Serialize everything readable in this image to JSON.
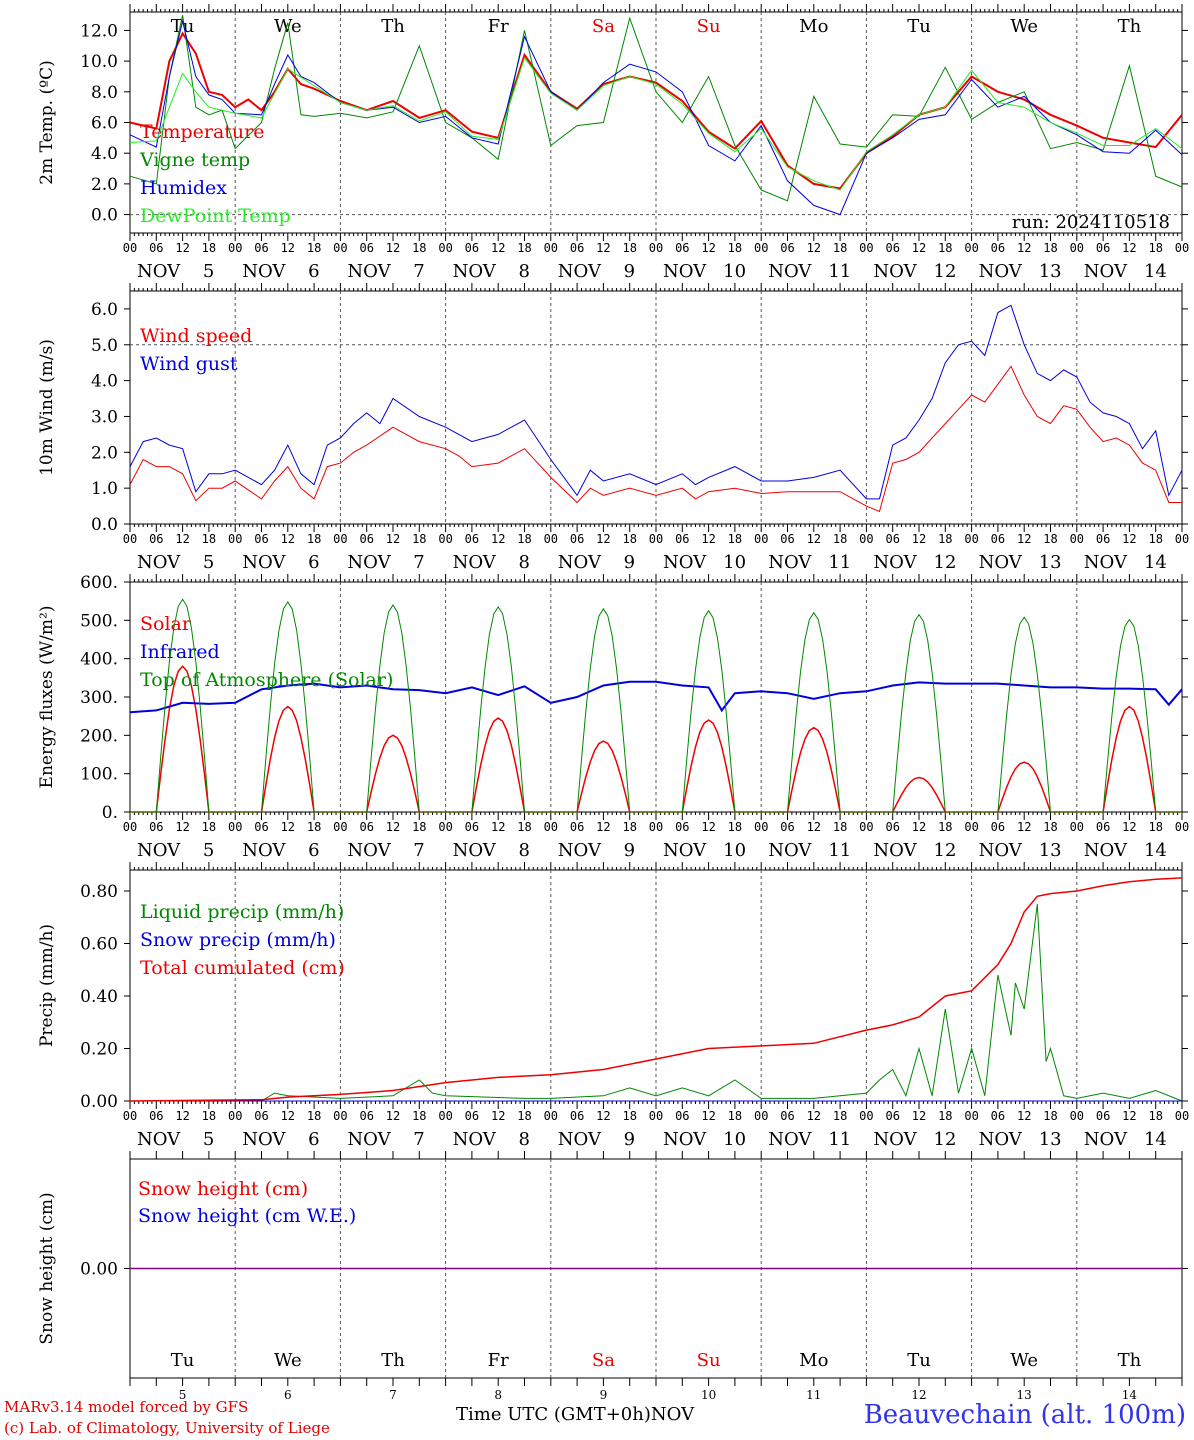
{
  "days": [
    "5",
    "6",
    "7",
    "8",
    "9",
    "10",
    "11",
    "12",
    "13",
    "14"
  ],
  "month": "NOV",
  "weekdays": [
    "Tu",
    "We",
    "Th",
    "Fr",
    "Sa",
    "Su",
    "Mo",
    "Tu",
    "We",
    "Th"
  ],
  "weekend_flags": [
    false,
    false,
    false,
    false,
    true,
    true,
    false,
    false,
    false,
    false
  ],
  "hour_ticks": [
    "00",
    "06",
    "12",
    "18"
  ],
  "last_tick": "00",
  "run_label": "run: 2024110518",
  "footer": {
    "model": "MARv3.14 model forced by GFS",
    "copyright": "(c) Lab. of Climatology, University of Liege",
    "time_axis": "Time UTC (GMT+0h)",
    "month": "NOV",
    "station": "Beauvechain (alt. 100m)"
  },
  "colors": {
    "red": "#ee0000",
    "green": "#008800",
    "blue": "#0000dd",
    "lightgreen": "#22ee22",
    "purple": "#800080"
  },
  "chart_data": [
    {
      "type": "line",
      "ylabel": "2m Temp. (ºC)",
      "ylim": [
        -1.2,
        13.2
      ],
      "yticks": [
        "0.0",
        "2.0",
        "4.0",
        "6.0",
        "8.0",
        "10.0",
        "12.0"
      ],
      "ytick_values": [
        0,
        2,
        4,
        6,
        8,
        10,
        12
      ],
      "dashed_y": [
        0
      ],
      "x_unit": "hours since NOV 5 00 UTC",
      "series": [
        {
          "name": "Temperature",
          "color": "#ee0000",
          "width": 2,
          "x": [
            0,
            6,
            9,
            12,
            15,
            18,
            21,
            24,
            27,
            30,
            33,
            36,
            39,
            42,
            48,
            54,
            60,
            66,
            72,
            78,
            84,
            90,
            96,
            102,
            108,
            114,
            120,
            126,
            132,
            138,
            144,
            150,
            156,
            162,
            168,
            174,
            180,
            186,
            192,
            198,
            204,
            210,
            216,
            222,
            228,
            234,
            240
          ],
          "y": [
            6.0,
            5.6,
            10,
            11.8,
            10.5,
            8,
            7.8,
            7,
            7.5,
            6.8,
            8,
            9.5,
            8.5,
            8.2,
            7.4,
            6.8,
            7.4,
            6.3,
            6.8,
            5.4,
            5,
            10.4,
            8,
            6.9,
            8.5,
            9,
            8.6,
            7.4,
            5.4,
            4.3,
            6.1,
            3.2,
            2.0,
            1.7,
            4,
            5.1,
            6.5,
            7,
            9,
            8,
            7.5,
            6.5,
            5.8,
            5,
            4.7,
            4.4,
            6.5
          ]
        },
        {
          "name": "Vigne temp",
          "color": "#008800",
          "width": 1,
          "x": [
            0,
            6,
            9,
            12,
            15,
            18,
            21,
            24,
            30,
            33,
            36,
            39,
            42,
            48,
            54,
            60,
            66,
            72,
            78,
            84,
            90,
            96,
            102,
            108,
            114,
            120,
            126,
            132,
            138,
            144,
            150,
            156,
            162,
            168,
            174,
            180,
            186,
            192,
            198,
            204,
            210,
            216,
            222,
            228,
            234,
            240
          ],
          "y": [
            2.5,
            2.0,
            9,
            13.0,
            7,
            6.5,
            6.8,
            4.3,
            6,
            9.5,
            12.5,
            6.5,
            6.4,
            6.6,
            6.3,
            6.7,
            11,
            6,
            5,
            3.6,
            12,
            4.5,
            5.8,
            6,
            12.8,
            8,
            6,
            9,
            4.5,
            1.6,
            0.9,
            7.7,
            4.6,
            4.4,
            6.5,
            6.4,
            9.6,
            6.2,
            7.3,
            8,
            4.3,
            4.7,
            4.2,
            9.7,
            2.5,
            1.8
          ]
        },
        {
          "name": "Humidex",
          "color": "#0000dd",
          "width": 1,
          "x": [
            0,
            6,
            9,
            12,
            15,
            18,
            21,
            24,
            30,
            33,
            36,
            39,
            42,
            48,
            54,
            60,
            66,
            72,
            78,
            84,
            90,
            96,
            102,
            108,
            114,
            120,
            126,
            132,
            138,
            144,
            150,
            156,
            162,
            168,
            174,
            180,
            186,
            192,
            198,
            204,
            210,
            216,
            222,
            228,
            234,
            240
          ],
          "y": [
            5.2,
            4.4,
            9,
            12.6,
            9,
            7.8,
            7.5,
            6.6,
            6.5,
            8.5,
            10.4,
            9,
            8.6,
            7.3,
            6.8,
            7,
            6,
            6.4,
            5,
            4.6,
            11.6,
            8,
            6.8,
            8.6,
            9.8,
            9.3,
            8,
            4.5,
            3.5,
            5.8,
            2.2,
            0.6,
            0.0,
            4,
            5,
            6.2,
            6.5,
            8.8,
            7,
            7.7,
            6,
            5.2,
            4.1,
            4.0,
            5.5,
            3.9
          ]
        },
        {
          "name": "DewPoint Temp",
          "color": "#22ee22",
          "width": 1,
          "x": [
            0,
            6,
            9,
            12,
            15,
            18,
            21,
            24,
            30,
            36,
            42,
            48,
            54,
            60,
            66,
            72,
            78,
            84,
            90,
            96,
            102,
            108,
            114,
            120,
            126,
            132,
            138,
            144,
            150,
            156,
            162,
            168,
            174,
            180,
            186,
            192,
            198,
            204,
            210,
            216,
            222,
            228,
            234,
            240
          ],
          "y": [
            4.7,
            4.8,
            7,
            9.2,
            8,
            7,
            6.8,
            6.6,
            6.3,
            9.5,
            8.4,
            7.3,
            6.8,
            7.1,
            6.1,
            6.7,
            5.1,
            4.9,
            10.2,
            7.9,
            6.8,
            8.4,
            9,
            8.5,
            7.2,
            5.3,
            4.1,
            5.6,
            3.1,
            2.2,
            1.6,
            4.1,
            5.2,
            6.5,
            7,
            9.4,
            7.3,
            7.0,
            6,
            5.3,
            4.5,
            4.5,
            5.6,
            4.3
          ]
        }
      ]
    },
    {
      "type": "line",
      "ylabel": "10m Wind (m/s)",
      "ylim": [
        0,
        6.5
      ],
      "yticks": [
        "0.0",
        "1.0",
        "2.0",
        "3.0",
        "4.0",
        "5.0",
        "6.0"
      ],
      "ytick_values": [
        0,
        1,
        2,
        3,
        4,
        5,
        6
      ],
      "dashed_y": [
        5
      ],
      "series": [
        {
          "name": "Wind speed",
          "color": "#ee0000",
          "width": 1,
          "x": [
            0,
            3,
            6,
            9,
            12,
            15,
            18,
            21,
            24,
            30,
            33,
            36,
            39,
            42,
            45,
            48,
            51,
            54,
            60,
            66,
            72,
            75,
            78,
            84,
            90,
            96,
            102,
            105,
            108,
            114,
            120,
            126,
            129,
            132,
            138,
            144,
            150,
            156,
            162,
            168,
            171,
            174,
            177,
            180,
            183,
            186,
            189,
            192,
            195,
            198,
            201,
            204,
            207,
            210,
            213,
            216,
            219,
            222,
            225,
            228,
            231,
            234,
            237,
            240
          ],
          "y": [
            1.1,
            1.8,
            1.6,
            1.6,
            1.4,
            0.65,
            1.0,
            1.0,
            1.2,
            0.7,
            1.2,
            1.6,
            1.0,
            0.7,
            1.6,
            1.7,
            2.0,
            2.2,
            2.7,
            2.3,
            2.1,
            1.9,
            1.6,
            1.7,
            2.1,
            1.3,
            0.6,
            1.0,
            0.8,
            1.0,
            0.8,
            1.0,
            0.7,
            0.9,
            1.0,
            0.85,
            0.9,
            0.9,
            0.9,
            0.5,
            0.35,
            1.7,
            1.8,
            2.0,
            2.4,
            2.8,
            3.2,
            3.6,
            3.4,
            3.9,
            4.4,
            3.6,
            3.0,
            2.8,
            3.3,
            3.2,
            2.7,
            2.3,
            2.4,
            2.2,
            1.7,
            1.5,
            0.6,
            0.6
          ]
        },
        {
          "name": "Wind gust",
          "color": "#0000dd",
          "width": 1,
          "x": [
            0,
            3,
            6,
            9,
            12,
            15,
            18,
            21,
            24,
            30,
            33,
            36,
            39,
            42,
            45,
            48,
            51,
            54,
            57,
            60,
            66,
            72,
            75,
            78,
            84,
            90,
            96,
            102,
            105,
            108,
            114,
            120,
            126,
            129,
            132,
            138,
            144,
            150,
            156,
            162,
            168,
            171,
            174,
            177,
            180,
            183,
            186,
            189,
            192,
            195,
            198,
            201,
            204,
            207,
            210,
            213,
            216,
            219,
            222,
            225,
            228,
            231,
            234,
            237,
            240
          ],
          "y": [
            1.6,
            2.3,
            2.4,
            2.2,
            2.1,
            0.9,
            1.4,
            1.4,
            1.5,
            1.1,
            1.5,
            2.2,
            1.4,
            1.1,
            2.2,
            2.4,
            2.8,
            3.1,
            2.8,
            3.5,
            3.0,
            2.7,
            2.5,
            2.3,
            2.5,
            2.9,
            1.8,
            0.8,
            1.5,
            1.2,
            1.4,
            1.1,
            1.4,
            1.1,
            1.3,
            1.6,
            1.2,
            1.2,
            1.3,
            1.5,
            0.7,
            0.7,
            2.2,
            2.4,
            2.9,
            3.5,
            4.5,
            5.0,
            5.1,
            4.7,
            5.9,
            6.1,
            5.0,
            4.2,
            4.0,
            4.3,
            4.1,
            3.4,
            3.1,
            3.0,
            2.8,
            2.1,
            2.6,
            0.8,
            1.5
          ]
        }
      ]
    },
    {
      "type": "line",
      "ylabel": "Energy fluxes (W/m²)",
      "ylim": [
        0,
        600
      ],
      "yticks": [
        "0.",
        "100.",
        "200.",
        "300.",
        "400.",
        "500.",
        "600."
      ],
      "ytick_values": [
        0,
        100,
        200,
        300,
        400,
        500,
        600
      ],
      "dashed_y": [],
      "series": [
        {
          "name": "Solar",
          "color": "#ee0000",
          "width": 1.5,
          "kind": "peaks",
          "peaks": [
            380,
            275,
            200,
            245,
            185,
            240,
            220,
            90,
            130,
            275
          ]
        },
        {
          "name": "Infrared",
          "color": "#0000dd",
          "width": 2,
          "x": [
            0,
            6,
            12,
            18,
            24,
            30,
            36,
            42,
            48,
            54,
            60,
            66,
            72,
            78,
            84,
            90,
            96,
            102,
            108,
            114,
            120,
            126,
            132,
            135,
            138,
            144,
            150,
            156,
            162,
            168,
            174,
            180,
            186,
            192,
            198,
            204,
            210,
            216,
            222,
            228,
            234,
            237,
            240
          ],
          "y": [
            260,
            265,
            285,
            282,
            285,
            320,
            330,
            335,
            325,
            330,
            320,
            318,
            310,
            325,
            305,
            328,
            285,
            300,
            330,
            340,
            340,
            330,
            325,
            265,
            310,
            315,
            310,
            295,
            310,
            315,
            330,
            338,
            335,
            335,
            335,
            330,
            325,
            325,
            322,
            322,
            320,
            280,
            320
          ]
        },
        {
          "name": "Top of Atmosphere (Solar)",
          "color": "#008800",
          "width": 1,
          "kind": "peaks",
          "peaks": [
            555,
            548,
            540,
            535,
            530,
            525,
            520,
            515,
            508,
            502
          ]
        }
      ]
    },
    {
      "type": "line",
      "ylabel": "Precip (mm/h)",
      "ylim": [
        0,
        0.88
      ],
      "yticks": [
        "0.00",
        "0.20",
        "0.40",
        "0.60",
        "0.80"
      ],
      "ytick_values": [
        0,
        0.2,
        0.4,
        0.6,
        0.8
      ],
      "dashed_y": [],
      "series": [
        {
          "name": "Liquid precip (mm/h)",
          "color": "#008800",
          "width": 1,
          "x": [
            0,
            30,
            33,
            36,
            48,
            60,
            66,
            69,
            72,
            90,
            96,
            108,
            114,
            120,
            126,
            132,
            138,
            144,
            156,
            168,
            171,
            174,
            177,
            180,
            183,
            186,
            189,
            192,
            195,
            198,
            201,
            202,
            204,
            207,
            209,
            210,
            213,
            216,
            222,
            228,
            234,
            240
          ],
          "y": [
            0,
            0,
            0.03,
            0.02,
            0.01,
            0.02,
            0.08,
            0.03,
            0.02,
            0.01,
            0.01,
            0.02,
            0.05,
            0.02,
            0.05,
            0.02,
            0.08,
            0.01,
            0.01,
            0.03,
            0.08,
            0.12,
            0.02,
            0.2,
            0.02,
            0.35,
            0.03,
            0.2,
            0.02,
            0.48,
            0.25,
            0.45,
            0.35,
            0.75,
            0.15,
            0.2,
            0.02,
            0.01,
            0.03,
            0.01,
            0.04,
            0
          ]
        },
        {
          "name": "Snow precip (mm/h)",
          "color": "#0000dd",
          "width": 1,
          "x": [
            0,
            240
          ],
          "y": [
            0,
            0
          ]
        },
        {
          "name": "Total cumulated (cm)",
          "color": "#ee0000",
          "width": 1.5,
          "x": [
            0,
            30,
            36,
            48,
            60,
            72,
            84,
            96,
            108,
            120,
            132,
            144,
            156,
            168,
            174,
            180,
            186,
            192,
            198,
            201,
            204,
            207,
            210,
            216,
            222,
            228,
            234,
            240
          ],
          "y": [
            0,
            0.005,
            0.015,
            0.025,
            0.04,
            0.07,
            0.09,
            0.1,
            0.12,
            0.16,
            0.2,
            0.21,
            0.22,
            0.27,
            0.29,
            0.32,
            0.4,
            0.42,
            0.52,
            0.6,
            0.72,
            0.78,
            0.79,
            0.8,
            0.82,
            0.835,
            0.845,
            0.85
          ]
        }
      ]
    },
    {
      "type": "line",
      "ylabel": "Snow height (cm)",
      "ylim": [
        -1,
        1
      ],
      "yticks": [
        "0.00"
      ],
      "ytick_values": [
        0
      ],
      "dashed_y": [],
      "series": [
        {
          "name": "Snow height (cm)",
          "color": "#ee0000",
          "width": 1,
          "x": [
            0,
            240
          ],
          "y": [
            0,
            0
          ]
        },
        {
          "name": "Snow height (cm W.E.)",
          "color": "#0000dd",
          "width": 1,
          "x": [
            0,
            240
          ],
          "y": [
            0,
            0
          ]
        }
      ]
    }
  ]
}
